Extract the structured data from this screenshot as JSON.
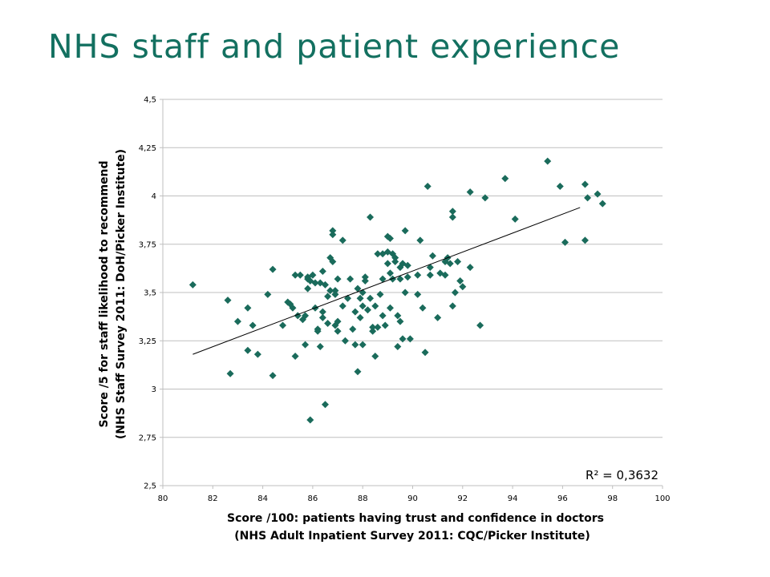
{
  "slide": {
    "title": "NHS staff and patient experience"
  },
  "chart_data": {
    "type": "scatter",
    "title": "",
    "xlabel_lines": [
      "Score /100: patients having trust and confidence in doctors",
      "(NHS Adult Inpatient Survey 2011: CQC/Picker Institute)"
    ],
    "ylabel_lines": [
      "Score /5 for staff likelihood to recommend",
      "(NHS Staff Survey 2011: DoH/Picker Institute)"
    ],
    "xlim": [
      80,
      100
    ],
    "ylim": [
      2.5,
      4.5
    ],
    "x_ticks": [
      80,
      82,
      84,
      86,
      88,
      90,
      92,
      94,
      96,
      98,
      100
    ],
    "x_tick_labels": [
      "80",
      "82",
      "84",
      "86",
      "88",
      "90",
      "92",
      "94",
      "96",
      "98",
      "100"
    ],
    "y_ticks": [
      2.5,
      2.75,
      3,
      3.25,
      3.5,
      3.75,
      4,
      4.25,
      4.5
    ],
    "y_tick_labels": [
      "2,5",
      "2,75",
      "3",
      "3,25",
      "3,5",
      "3,75",
      "4",
      "4,25",
      "4,5"
    ],
    "gridlines": "horizontal",
    "marker": "diamond",
    "marker_color": "#1a6b5b",
    "trendline": {
      "type": "linear",
      "from": [
        81.2,
        3.18
      ],
      "to": [
        96.7,
        3.94
      ],
      "color": "#000000"
    },
    "r_squared_label": "R² = 0,3632",
    "points": [
      [
        81.2,
        3.54
      ],
      [
        82.6,
        3.46
      ],
      [
        82.7,
        3.08
      ],
      [
        83.0,
        3.35
      ],
      [
        83.4,
        3.2
      ],
      [
        83.4,
        3.42
      ],
      [
        83.6,
        3.33
      ],
      [
        83.8,
        3.18
      ],
      [
        84.2,
        3.49
      ],
      [
        84.4,
        3.62
      ],
      [
        84.4,
        3.07
      ],
      [
        84.8,
        3.33
      ],
      [
        85.0,
        3.45
      ],
      [
        85.1,
        3.44
      ],
      [
        85.2,
        3.42
      ],
      [
        85.3,
        3.59
      ],
      [
        85.3,
        3.17
      ],
      [
        85.4,
        3.38
      ],
      [
        85.5,
        3.59
      ],
      [
        85.6,
        3.36
      ],
      [
        85.7,
        3.23
      ],
      [
        85.7,
        3.38
      ],
      [
        85.8,
        3.58
      ],
      [
        85.8,
        3.57
      ],
      [
        85.9,
        3.56
      ],
      [
        85.8,
        3.52
      ],
      [
        85.9,
        2.84
      ],
      [
        86.0,
        3.59
      ],
      [
        86.1,
        3.55
      ],
      [
        86.1,
        3.42
      ],
      [
        86.2,
        3.31
      ],
      [
        86.2,
        3.3
      ],
      [
        86.3,
        3.22
      ],
      [
        86.3,
        3.55
      ],
      [
        86.4,
        3.61
      ],
      [
        86.4,
        3.4
      ],
      [
        86.4,
        3.37
      ],
      [
        86.5,
        3.54
      ],
      [
        86.5,
        2.92
      ],
      [
        86.6,
        3.48
      ],
      [
        86.6,
        3.34
      ],
      [
        86.7,
        3.68
      ],
      [
        86.7,
        3.51
      ],
      [
        86.8,
        3.82
      ],
      [
        86.8,
        3.8
      ],
      [
        86.8,
        3.66
      ],
      [
        86.9,
        3.33
      ],
      [
        86.9,
        3.51
      ],
      [
        86.9,
        3.49
      ],
      [
        87.0,
        3.3
      ],
      [
        87.0,
        3.35
      ],
      [
        87.0,
        3.57
      ],
      [
        87.2,
        3.77
      ],
      [
        87.2,
        3.43
      ],
      [
        87.3,
        3.25
      ],
      [
        87.4,
        3.47
      ],
      [
        87.5,
        3.57
      ],
      [
        87.6,
        3.31
      ],
      [
        87.7,
        3.4
      ],
      [
        87.7,
        3.23
      ],
      [
        87.8,
        3.09
      ],
      [
        87.8,
        3.52
      ],
      [
        87.9,
        3.47
      ],
      [
        87.9,
        3.37
      ],
      [
        88.0,
        3.23
      ],
      [
        88.0,
        3.5
      ],
      [
        88.0,
        3.43
      ],
      [
        88.1,
        3.56
      ],
      [
        88.1,
        3.58
      ],
      [
        88.2,
        3.41
      ],
      [
        88.3,
        3.89
      ],
      [
        88.3,
        3.47
      ],
      [
        88.4,
        3.32
      ],
      [
        88.4,
        3.3
      ],
      [
        88.5,
        3.17
      ],
      [
        88.5,
        3.43
      ],
      [
        88.6,
        3.32
      ],
      [
        88.6,
        3.7
      ],
      [
        88.7,
        3.49
      ],
      [
        88.8,
        3.7
      ],
      [
        88.8,
        3.38
      ],
      [
        88.8,
        3.57
      ],
      [
        88.9,
        3.33
      ],
      [
        89.0,
        3.79
      ],
      [
        89.0,
        3.65
      ],
      [
        89.0,
        3.71
      ],
      [
        89.1,
        3.42
      ],
      [
        89.1,
        3.78
      ],
      [
        89.1,
        3.6
      ],
      [
        89.2,
        3.57
      ],
      [
        89.2,
        3.7
      ],
      [
        89.3,
        3.68
      ],
      [
        89.3,
        3.66
      ],
      [
        89.4,
        3.22
      ],
      [
        89.4,
        3.38
      ],
      [
        89.5,
        3.63
      ],
      [
        89.5,
        3.35
      ],
      [
        89.5,
        3.57
      ],
      [
        89.6,
        3.26
      ],
      [
        89.6,
        3.65
      ],
      [
        89.7,
        3.82
      ],
      [
        89.7,
        3.5
      ],
      [
        89.8,
        3.58
      ],
      [
        89.8,
        3.64
      ],
      [
        89.9,
        3.26
      ],
      [
        90.2,
        3.59
      ],
      [
        90.2,
        3.49
      ],
      [
        90.3,
        3.77
      ],
      [
        90.4,
        3.42
      ],
      [
        90.5,
        3.19
      ],
      [
        90.6,
        4.05
      ],
      [
        90.7,
        3.59
      ],
      [
        90.7,
        3.63
      ],
      [
        90.8,
        3.69
      ],
      [
        91.0,
        3.37
      ],
      [
        91.1,
        3.6
      ],
      [
        91.3,
        3.66
      ],
      [
        91.3,
        3.59
      ],
      [
        91.4,
        3.68
      ],
      [
        91.5,
        3.65
      ],
      [
        91.6,
        3.89
      ],
      [
        91.6,
        3.92
      ],
      [
        91.6,
        3.43
      ],
      [
        91.7,
        3.5
      ],
      [
        91.8,
        3.66
      ],
      [
        91.9,
        3.56
      ],
      [
        92.0,
        3.53
      ],
      [
        92.3,
        4.02
      ],
      [
        92.3,
        3.63
      ],
      [
        92.7,
        3.33
      ],
      [
        92.9,
        3.99
      ],
      [
        93.7,
        4.09
      ],
      [
        94.1,
        3.88
      ],
      [
        95.4,
        4.18
      ],
      [
        95.9,
        4.05
      ],
      [
        96.1,
        3.76
      ],
      [
        96.9,
        4.06
      ],
      [
        96.9,
        3.77
      ],
      [
        97.0,
        3.99
      ],
      [
        97.4,
        4.01
      ],
      [
        97.6,
        3.96
      ]
    ]
  }
}
